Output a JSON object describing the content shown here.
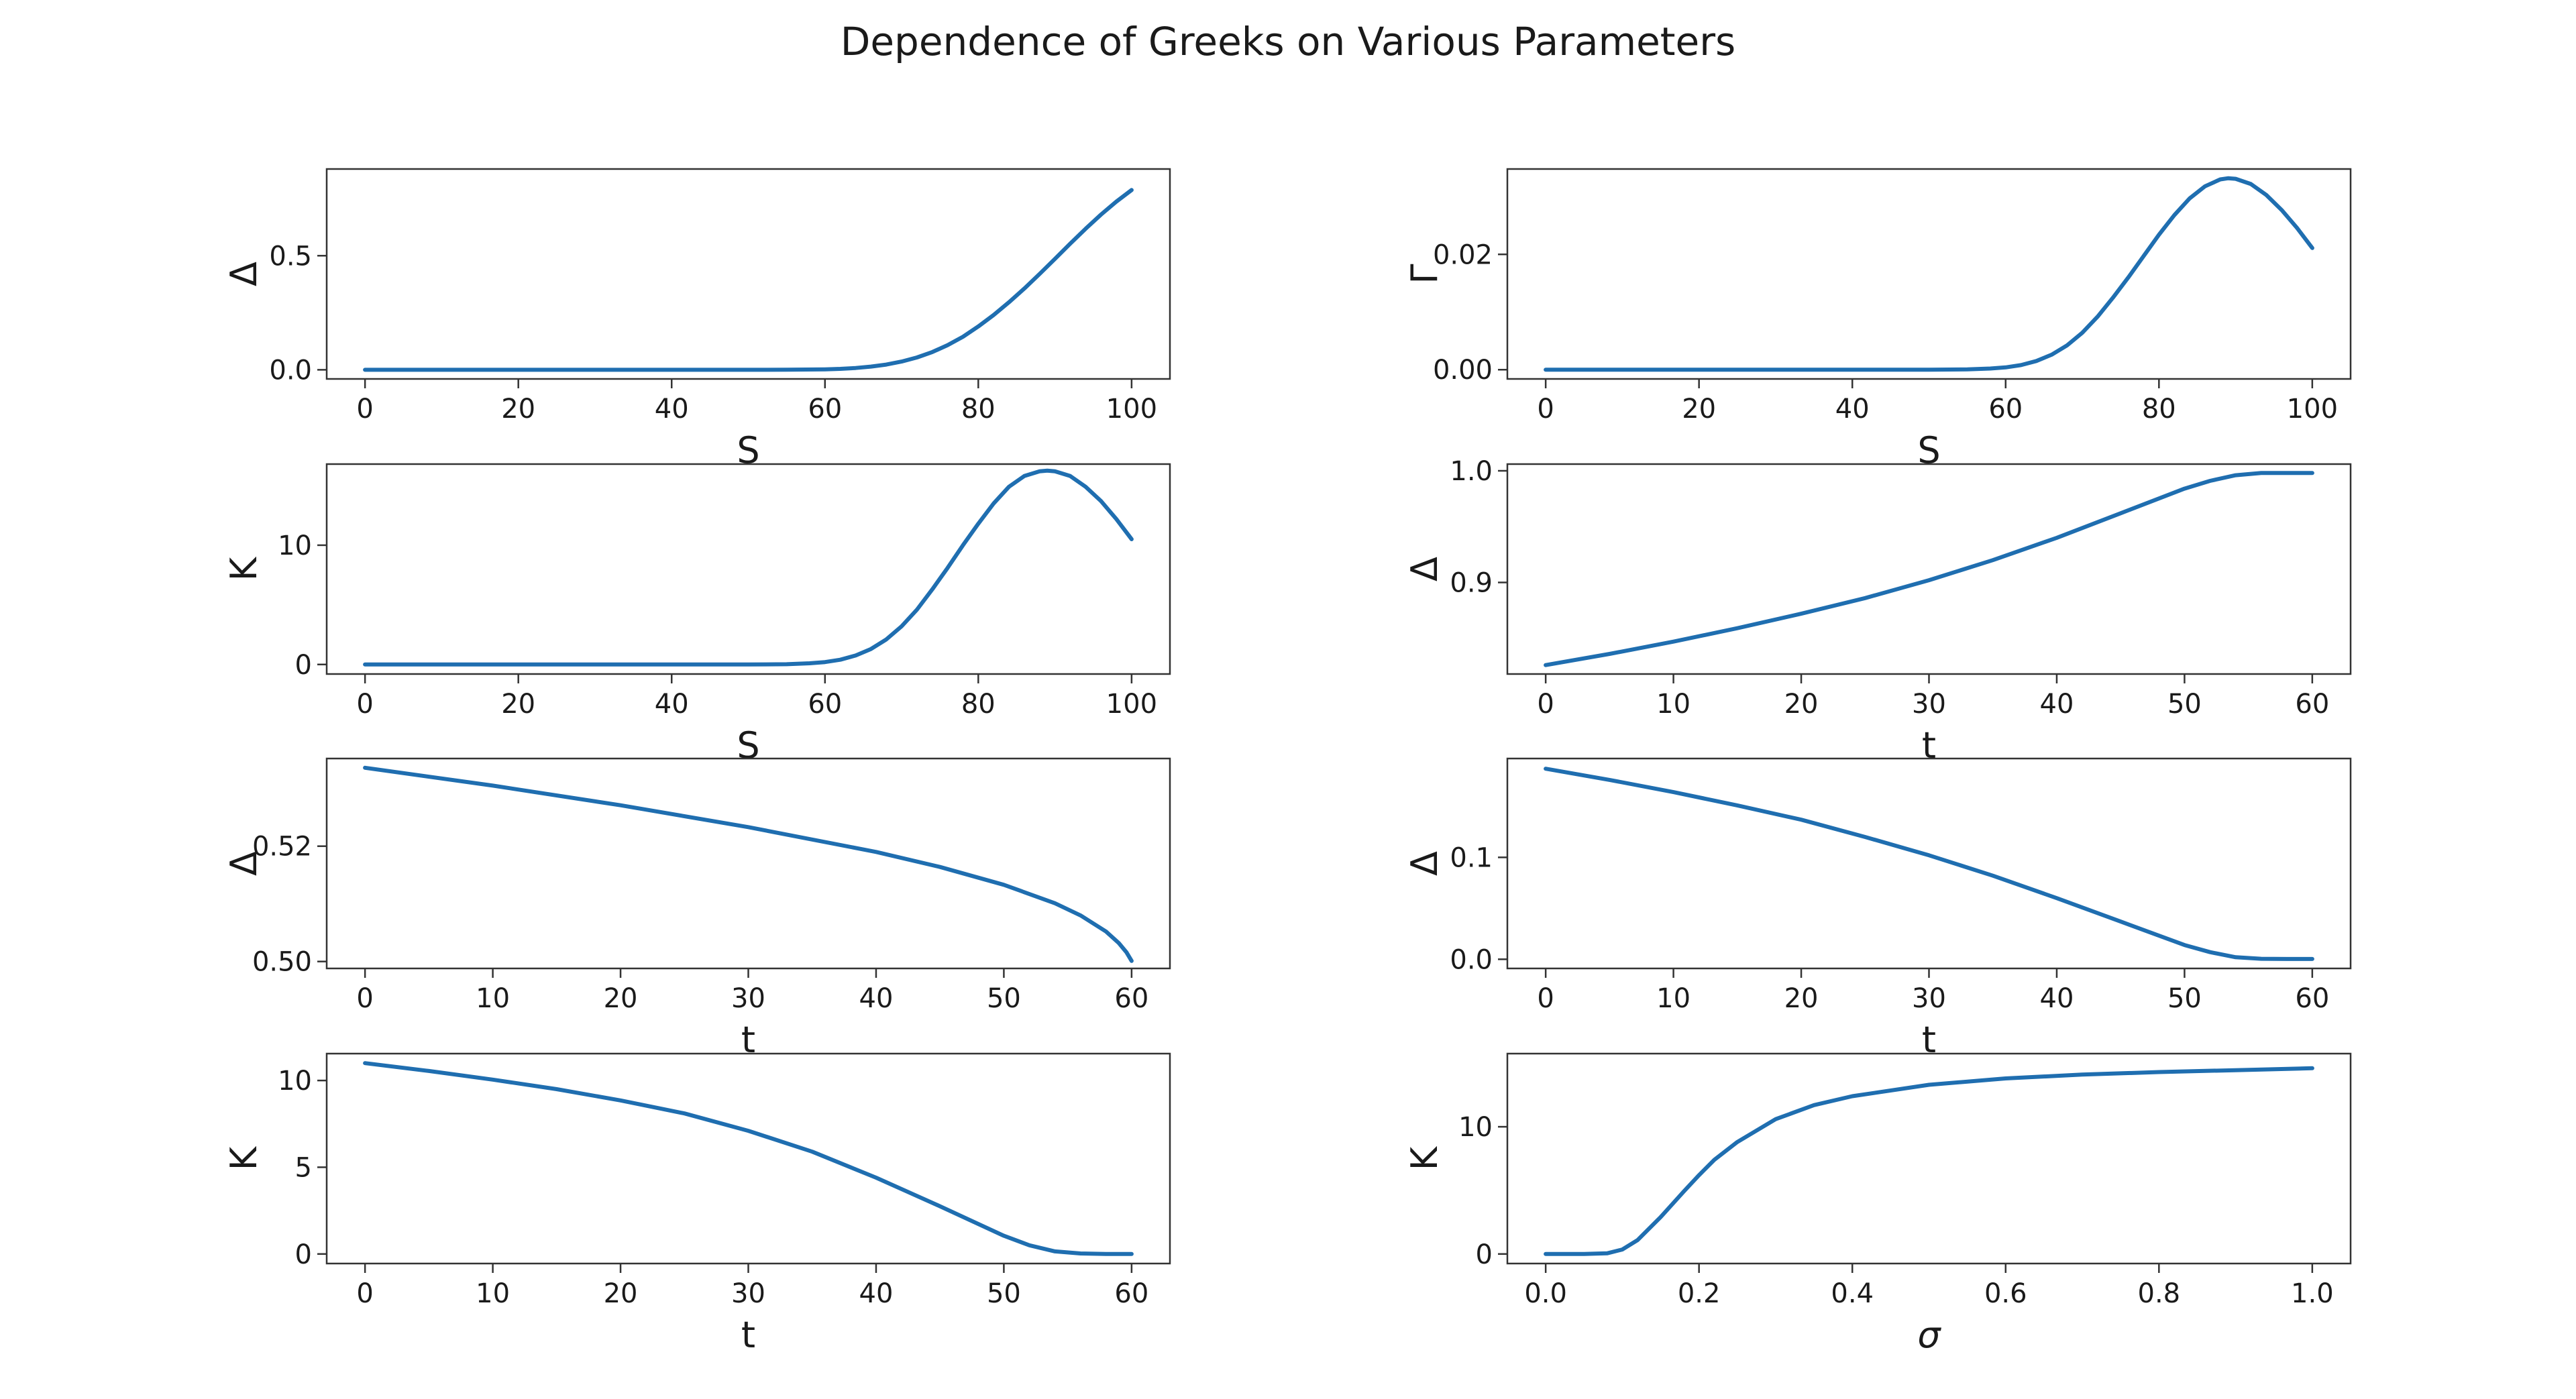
{
  "title": "Dependence of Greeks on Various Parameters",
  "series_color": "#1f6eb0",
  "chart_data": [
    {
      "type": "line",
      "xlabel": "S",
      "ylabel": "Δ",
      "xlim": [
        -5,
        105
      ],
      "ylim": [
        -0.04,
        0.88
      ],
      "xticks": [
        0,
        20,
        40,
        60,
        80,
        100
      ],
      "yticks": [
        0.0,
        0.5
      ],
      "xtick_labels": [
        "0",
        "20",
        "40",
        "60",
        "80",
        "100"
      ],
      "ytick_labels": [
        "0.0",
        "0.5"
      ],
      "x": [
        0,
        10,
        20,
        30,
        40,
        50,
        55,
        60,
        62,
        64,
        66,
        68,
        70,
        72,
        74,
        76,
        78,
        80,
        82,
        84,
        86,
        88,
        90,
        92,
        94,
        96,
        98,
        100
      ],
      "y": [
        0,
        0,
        0,
        0,
        0,
        0,
        0.0002,
        0.002,
        0.004,
        0.008,
        0.014,
        0.023,
        0.036,
        0.054,
        0.078,
        0.108,
        0.145,
        0.19,
        0.24,
        0.296,
        0.356,
        0.42,
        0.486,
        0.553,
        0.618,
        0.68,
        0.737,
        0.788
      ]
    },
    {
      "type": "line",
      "xlabel": "S",
      "ylabel": "Γ",
      "xlim": [
        -5,
        105
      ],
      "ylim": [
        -0.0016,
        0.0348
      ],
      "xticks": [
        0,
        20,
        40,
        60,
        80,
        100
      ],
      "yticks": [
        0.0,
        0.02
      ],
      "xtick_labels": [
        "0",
        "20",
        "40",
        "60",
        "80",
        "100"
      ],
      "ytick_labels": [
        "0.00",
        "0.02"
      ],
      "x": [
        0,
        10,
        20,
        30,
        40,
        50,
        55,
        58,
        60,
        62,
        64,
        66,
        68,
        70,
        72,
        74,
        76,
        78,
        80,
        82,
        84,
        86,
        88,
        89,
        90,
        92,
        94,
        96,
        98,
        100
      ],
      "y": [
        0,
        0,
        0,
        0,
        0,
        0,
        5e-05,
        0.0002,
        0.0004,
        0.0008,
        0.0015,
        0.0026,
        0.0042,
        0.0064,
        0.0092,
        0.0125,
        0.016,
        0.0197,
        0.0234,
        0.0268,
        0.0297,
        0.0318,
        0.033,
        0.0332,
        0.0331,
        0.0322,
        0.0303,
        0.0277,
        0.0246,
        0.0211
      ]
    },
    {
      "type": "line",
      "xlabel": "S",
      "ylabel": "K",
      "xlim": [
        -5,
        105
      ],
      "ylim": [
        -0.8,
        16.8
      ],
      "xticks": [
        0,
        20,
        40,
        60,
        80,
        100
      ],
      "yticks": [
        0,
        10
      ],
      "xtick_labels": [
        "0",
        "20",
        "40",
        "60",
        "80",
        "100"
      ],
      "ytick_labels": [
        "0",
        "10"
      ],
      "x": [
        0,
        10,
        20,
        30,
        40,
        50,
        55,
        58,
        60,
        62,
        64,
        66,
        68,
        70,
        72,
        74,
        76,
        78,
        80,
        82,
        84,
        86,
        88,
        89,
        90,
        92,
        94,
        96,
        98,
        100
      ],
      "y": [
        0,
        0,
        0,
        0,
        0,
        0,
        0.02,
        0.1,
        0.2,
        0.4,
        0.75,
        1.3,
        2.1,
        3.2,
        4.6,
        6.3,
        8.1,
        10.0,
        11.8,
        13.5,
        14.9,
        15.8,
        16.2,
        16.25,
        16.2,
        15.8,
        14.9,
        13.7,
        12.2,
        10.5
      ]
    },
    {
      "type": "line",
      "xlabel": "t",
      "ylabel": "Δ",
      "xlim": [
        -3,
        63
      ],
      "ylim": [
        0.818,
        1.006
      ],
      "xticks": [
        0,
        10,
        20,
        30,
        40,
        50,
        60
      ],
      "yticks": [
        0.9,
        1.0
      ],
      "xtick_labels": [
        "0",
        "10",
        "20",
        "30",
        "40",
        "50",
        "60"
      ],
      "ytick_labels": [
        "0.9",
        "1.0"
      ],
      "x": [
        0,
        5,
        10,
        15,
        20,
        25,
        30,
        35,
        40,
        45,
        50,
        52,
        54,
        56,
        58,
        60
      ],
      "y": [
        0.826,
        0.836,
        0.847,
        0.859,
        0.872,
        0.886,
        0.902,
        0.92,
        0.94,
        0.962,
        0.984,
        0.991,
        0.996,
        0.998,
        0.998,
        0.998
      ]
    },
    {
      "type": "line",
      "xlabel": "t",
      "ylabel": "Δ",
      "xlim": [
        -3,
        63
      ],
      "ylim": [
        0.4988,
        0.5352
      ],
      "xticks": [
        0,
        10,
        20,
        30,
        40,
        50,
        60
      ],
      "yticks": [
        0.5,
        0.52
      ],
      "xtick_labels": [
        "0",
        "10",
        "20",
        "30",
        "40",
        "50",
        "60"
      ],
      "ytick_labels": [
        "0.50",
        "0.52"
      ],
      "x": [
        0,
        10,
        20,
        30,
        40,
        45,
        50,
        54,
        56,
        58,
        59,
        59.6,
        60
      ],
      "y": [
        0.5336,
        0.5305,
        0.5271,
        0.5233,
        0.519,
        0.5164,
        0.5133,
        0.5101,
        0.508,
        0.5052,
        0.5032,
        0.5016,
        0.5001
      ]
    },
    {
      "type": "line",
      "xlabel": "t",
      "ylabel": "Δ",
      "xlim": [
        -3,
        63
      ],
      "ylim": [
        -0.009,
        0.197
      ],
      "xticks": [
        0,
        10,
        20,
        30,
        40,
        50,
        60
      ],
      "yticks": [
        0.0,
        0.1
      ],
      "xtick_labels": [
        "0",
        "10",
        "20",
        "30",
        "40",
        "50",
        "60"
      ],
      "ytick_labels": [
        "0.0",
        "0.1"
      ],
      "x": [
        0,
        5,
        10,
        15,
        20,
        25,
        30,
        35,
        40,
        45,
        50,
        52,
        54,
        56,
        58,
        60
      ],
      "y": [
        0.187,
        0.176,
        0.164,
        0.151,
        0.137,
        0.12,
        0.102,
        0.082,
        0.06,
        0.037,
        0.014,
        0.007,
        0.002,
        0.0005,
        0.0003,
        0.0003
      ]
    },
    {
      "type": "line",
      "xlabel": "t",
      "ylabel": "K",
      "xlim": [
        -3,
        63
      ],
      "ylim": [
        -0.55,
        11.55
      ],
      "xticks": [
        0,
        10,
        20,
        30,
        40,
        50,
        60
      ],
      "yticks": [
        0,
        5,
        10
      ],
      "xtick_labels": [
        "0",
        "10",
        "20",
        "30",
        "40",
        "50",
        "60"
      ],
      "ytick_labels": [
        "0",
        "5",
        "10"
      ],
      "x": [
        0,
        5,
        10,
        15,
        20,
        25,
        30,
        35,
        40,
        45,
        50,
        52,
        54,
        56,
        58,
        60
      ],
      "y": [
        11.0,
        10.55,
        10.05,
        9.5,
        8.85,
        8.1,
        7.1,
        5.9,
        4.4,
        2.75,
        1.05,
        0.5,
        0.15,
        0.03,
        0.0,
        0.0
      ]
    },
    {
      "type": "line",
      "xlabel": "σ",
      "ylabel": "K",
      "xlim": [
        -0.05,
        1.05
      ],
      "ylim": [
        -0.75,
        15.75
      ],
      "xticks": [
        0.0,
        0.2,
        0.4,
        0.6,
        0.8,
        1.0
      ],
      "yticks": [
        0,
        10
      ],
      "xtick_labels": [
        "0.0",
        "0.2",
        "0.4",
        "0.6",
        "0.8",
        "1.0"
      ],
      "ytick_labels": [
        "0",
        "10"
      ],
      "x": [
        0.0,
        0.05,
        0.08,
        0.1,
        0.12,
        0.15,
        0.18,
        0.2,
        0.22,
        0.25,
        0.3,
        0.35,
        0.4,
        0.5,
        0.6,
        0.7,
        0.8,
        0.9,
        1.0
      ],
      "y": [
        0,
        0,
        0.05,
        0.35,
        1.1,
        2.9,
        4.9,
        6.2,
        7.4,
        8.8,
        10.6,
        11.7,
        12.4,
        13.3,
        13.8,
        14.1,
        14.3,
        14.45,
        14.6
      ]
    }
  ]
}
